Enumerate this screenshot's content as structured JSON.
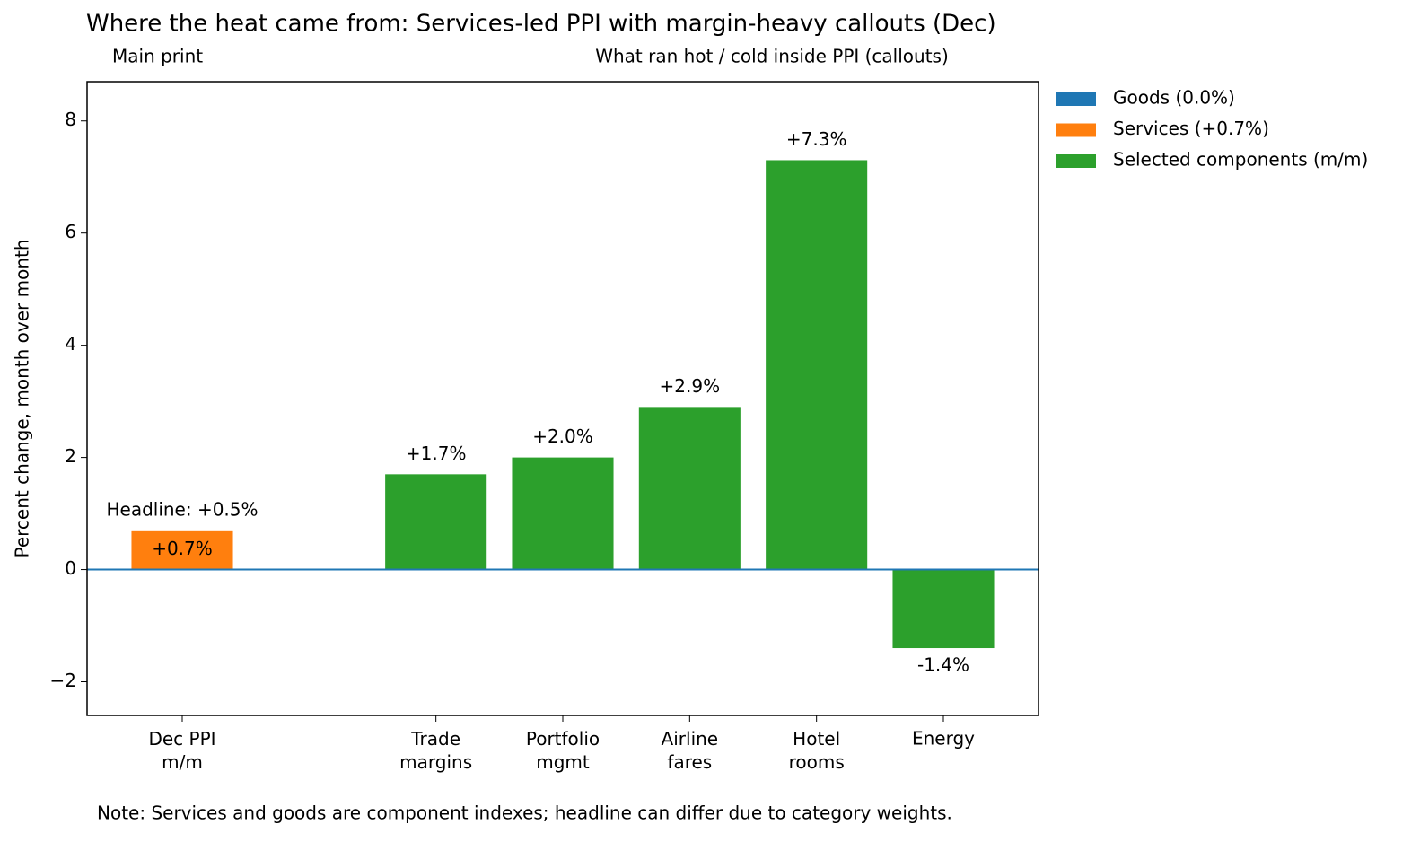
{
  "chart_data": {
    "type": "bar",
    "title": "Where the heat came from: Services-led PPI with margin-heavy callouts (Dec)",
    "subtitles": [
      "Main print",
      "What ran hot / cold inside PPI (callouts)"
    ],
    "y_label": "Percent change, month over month",
    "annotation": "Headline: +0.5%",
    "note": "Note: Services and goods are component indexes; headline can differ due to category weights.",
    "categories": [
      "Dec PPI\nm/m",
      null,
      "Trade\nmargins",
      "Portfolio\nmgmt",
      "Airline\nfares",
      "Hotel\nrooms",
      "Energy"
    ],
    "series": [
      {
        "name": "Goods (0.0%)",
        "color": "#1f77b4",
        "values": [
          0,
          null,
          null,
          null,
          null,
          null,
          null
        ]
      },
      {
        "name": "Services (+0.7%)",
        "color": "#ff7f0e",
        "values": [
          0.7,
          null,
          null,
          null,
          null,
          null,
          null
        ],
        "value_labels": [
          "+0.7%",
          null,
          null,
          null,
          null,
          null,
          null
        ]
      },
      {
        "name": "Selected components (m/m)",
        "color": "#2ca02c",
        "values": [
          null,
          null,
          1.7,
          2.0,
          2.9,
          7.3,
          -1.4
        ],
        "value_labels": [
          null,
          null,
          "+1.7%",
          "+2.0%",
          "+2.9%",
          "+7.3%",
          "-1.4%"
        ]
      }
    ],
    "ylim": [
      -2.6,
      8.7
    ],
    "yticks": [
      {
        "value": -2,
        "label": "−2"
      },
      0,
      2,
      4,
      6,
      8
    ],
    "legend": "outside-upper-right"
  }
}
